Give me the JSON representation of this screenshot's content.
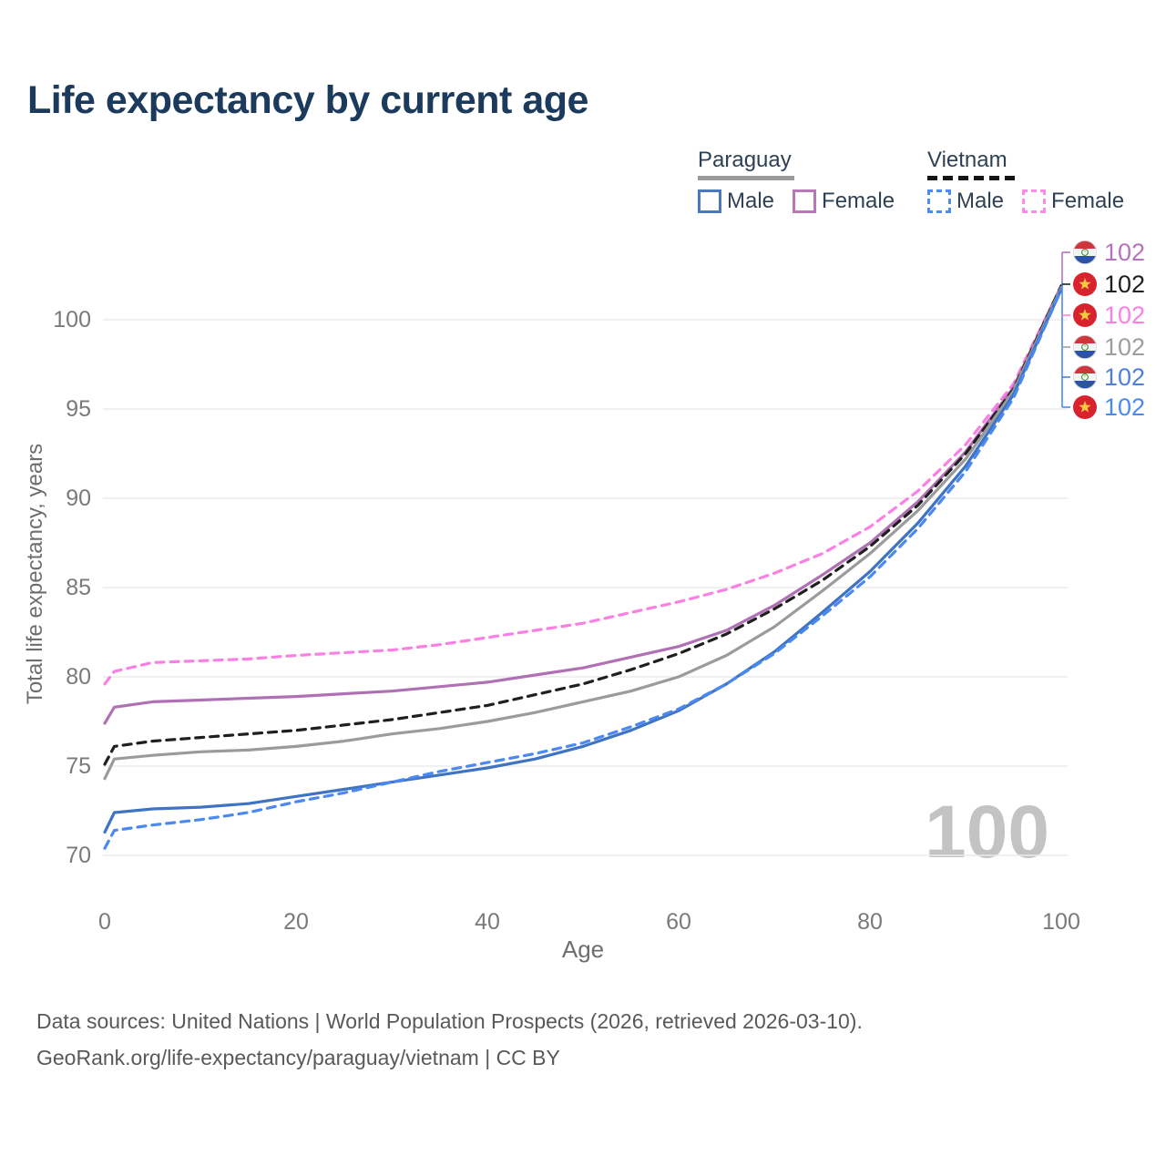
{
  "title": "Life expectancy by current age",
  "legend": {
    "groups": [
      {
        "label": "Paraguay",
        "line_style": "solid",
        "line_color": "#9b9b9b",
        "items": [
          {
            "label": "Male",
            "color": "#4a79c0",
            "dash": false
          },
          {
            "label": "Female",
            "color": "#b679b6",
            "dash": false
          }
        ]
      },
      {
        "label": "Vietnam",
        "line_style": "dashed",
        "line_color": "#151515",
        "items": [
          {
            "label": "Male",
            "color": "#4e8cf2",
            "dash": true
          },
          {
            "label": "Female",
            "color": "#fb8ae8",
            "dash": true
          }
        ]
      }
    ]
  },
  "chart_data": {
    "type": "line",
    "title": "Life expectancy by current age",
    "xlabel": "Age",
    "ylabel": "Total life expectancy, years",
    "xlim": [
      0,
      100
    ],
    "ylim": [
      69,
      103
    ],
    "xticks": [
      0,
      20,
      40,
      60,
      80,
      100
    ],
    "yticks": [
      70,
      75,
      80,
      85,
      90,
      95,
      100
    ],
    "grid": "horizontal",
    "legend_position": "top-right",
    "watermark": "100",
    "x": [
      0,
      1,
      5,
      10,
      15,
      20,
      25,
      30,
      35,
      40,
      45,
      50,
      55,
      60,
      65,
      70,
      75,
      80,
      85,
      90,
      95,
      100
    ],
    "series": [
      {
        "name": "Vietnam Female",
        "country": "vietnam",
        "sex": "female",
        "color": "#fb80e3",
        "dash": true,
        "values": [
          79.6,
          80.3,
          80.8,
          80.9,
          81.0,
          81.2,
          81.35,
          81.5,
          81.8,
          82.2,
          82.6,
          83.0,
          83.6,
          84.2,
          84.9,
          85.8,
          86.9,
          88.4,
          90.4,
          93.0,
          96.4,
          101.9
        ]
      },
      {
        "name": "Paraguay Female",
        "country": "paraguay",
        "sex": "female",
        "color": "#b071b4",
        "dash": false,
        "values": [
          77.4,
          78.3,
          78.6,
          78.7,
          78.8,
          78.9,
          79.05,
          79.2,
          79.45,
          79.7,
          80.1,
          80.5,
          81.1,
          81.7,
          82.6,
          84.0,
          85.7,
          87.5,
          89.8,
          92.6,
          96.2,
          101.9
        ]
      },
      {
        "name": "Vietnam",
        "country": "vietnam",
        "sex": "both",
        "color": "#1f1f1f",
        "dash": true,
        "values": [
          75.1,
          76.1,
          76.4,
          76.6,
          76.8,
          77.0,
          77.3,
          77.6,
          78.0,
          78.4,
          79.0,
          79.6,
          80.4,
          81.3,
          82.4,
          83.8,
          85.4,
          87.3,
          89.6,
          92.5,
          96.1,
          101.9
        ]
      },
      {
        "name": "Paraguay",
        "country": "paraguay",
        "sex": "both",
        "color": "#9b9b9b",
        "dash": false,
        "values": [
          74.3,
          75.4,
          75.6,
          75.8,
          75.9,
          76.1,
          76.4,
          76.8,
          77.1,
          77.5,
          78.0,
          78.6,
          79.2,
          80.0,
          81.2,
          82.8,
          84.8,
          86.9,
          89.3,
          92.2,
          96.0,
          101.8
        ]
      },
      {
        "name": "Paraguay Male",
        "country": "paraguay",
        "sex": "male",
        "color": "#3f74c4",
        "dash": false,
        "values": [
          71.3,
          72.4,
          72.6,
          72.7,
          72.9,
          73.3,
          73.7,
          74.1,
          74.5,
          74.9,
          75.4,
          76.1,
          77.0,
          78.1,
          79.6,
          81.4,
          83.6,
          85.9,
          88.6,
          91.8,
          95.8,
          101.7
        ]
      },
      {
        "name": "Vietnam Male",
        "country": "vietnam",
        "sex": "male",
        "color": "#4b89f1",
        "dash": true,
        "values": [
          70.4,
          71.4,
          71.7,
          72.0,
          72.4,
          73.0,
          73.5,
          74.1,
          74.7,
          75.2,
          75.7,
          76.3,
          77.2,
          78.2,
          79.6,
          81.3,
          83.4,
          85.6,
          88.3,
          91.5,
          95.6,
          101.7
        ]
      }
    ],
    "end_labels": [
      {
        "series": "Paraguay Female",
        "flag": "paraguay",
        "value": "102",
        "color": "#b573bb"
      },
      {
        "series": "Vietnam",
        "flag": "vietnam",
        "value": "102",
        "color": "#1f1f1f"
      },
      {
        "series": "Vietnam Female",
        "flag": "vietnam",
        "value": "102",
        "color": "#fb80e3"
      },
      {
        "series": "Paraguay",
        "flag": "paraguay",
        "value": "102",
        "color": "#9e9e9e"
      },
      {
        "series": "Paraguay Male",
        "flag": "paraguay",
        "value": "102",
        "color": "#4e7fd9"
      },
      {
        "series": "Vietnam Male",
        "flag": "vietnam",
        "value": "102",
        "color": "#4b89f1"
      }
    ]
  },
  "colors": {
    "title": "#1b3a5c",
    "axis_text": "#6e6e6e",
    "tick_text": "#7a7a7a",
    "gridline": "#ececec",
    "watermark": "#c3c3c3",
    "footer_text": "#58595b"
  },
  "footer": {
    "line1": "Data sources: United Nations | World Population Prospects (2026, retrieved 2026-03-10).",
    "line2": "GeoRank.org/life-expectancy/paraguay/vietnam | CC BY"
  }
}
